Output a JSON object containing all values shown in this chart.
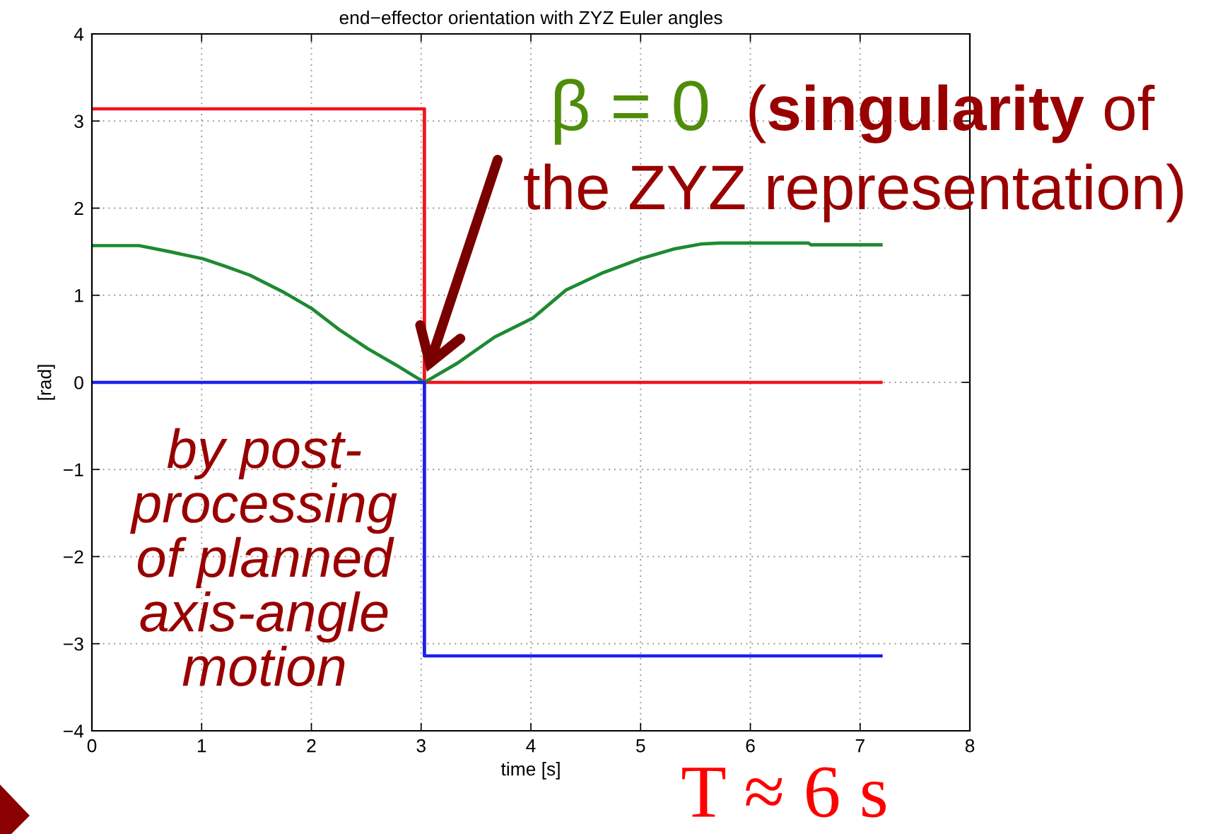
{
  "chart_data": {
    "type": "line",
    "title": "end−effector orientation with ZYZ Euler angles",
    "xlabel": "time [s]",
    "ylabel": "[rad]",
    "xlim": [
      0,
      8
    ],
    "ylim": [
      -4,
      4
    ],
    "xticks": [
      0,
      1,
      2,
      3,
      4,
      5,
      6,
      7,
      8
    ],
    "yticks": [
      {
        "value": -4,
        "label": "−4"
      },
      {
        "value": -3,
        "label": "−3"
      },
      {
        "value": -2,
        "label": "−2"
      },
      {
        "value": -1,
        "label": "−1"
      },
      0,
      1,
      2,
      3,
      4
    ],
    "grid": true,
    "line_style": "solid",
    "series": [
      {
        "color": "#f0141e",
        "x": [
          0,
          3.03,
          3.03,
          7.19
        ],
        "values": [
          3.14,
          3.14,
          0,
          0
        ]
      },
      {
        "color": "#1e8a32",
        "x": [
          0,
          0.43,
          0.71,
          1.01,
          1.22,
          1.44,
          1.74,
          2.0,
          2.26,
          2.51,
          2.77,
          3.03,
          3.33,
          3.67,
          4.02,
          4.32,
          4.66,
          5.0,
          5.3,
          5.56,
          5.73,
          6.53,
          6.55,
          7.19
        ],
        "values": [
          1.57,
          1.57,
          1.5,
          1.42,
          1.33,
          1.23,
          1.04,
          0.85,
          0.6,
          0.39,
          0.2,
          0,
          0.22,
          0.52,
          0.74,
          1.06,
          1.26,
          1.42,
          1.53,
          1.59,
          1.6,
          1.6,
          1.58,
          1.58
        ]
      },
      {
        "color": "#1e1ef0",
        "x": [
          0,
          3.03,
          3.03,
          7.19
        ],
        "values": [
          0,
          0,
          -3.14,
          -3.14
        ]
      }
    ],
    "annotations": [
      "β = 0",
      "(",
      "singularity",
      "of",
      "the ZYZ representation)",
      "by post-\nprocessing\nof planned\naxis-angle\nmotion",
      "T ≈ 6 s"
    ]
  }
}
